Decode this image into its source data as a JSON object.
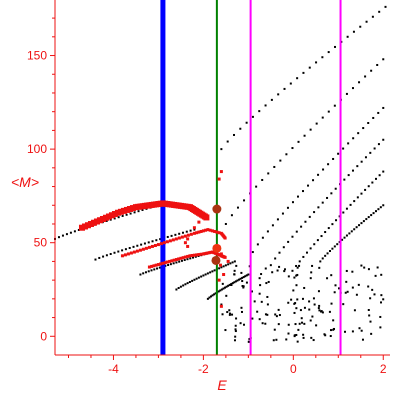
{
  "chart_data": {
    "type": "scatter",
    "xlabel": "E",
    "ylabel": "<M>",
    "xlim": [
      -5.3,
      2.15
    ],
    "ylim": [
      -10,
      177
    ],
    "x_ticks": [
      -4,
      -2,
      0,
      2
    ],
    "y_ticks": [
      0,
      50,
      100,
      150
    ],
    "grid": false,
    "axis_color": "#ee1111",
    "vertical_lines": [
      {
        "x": -2.9,
        "color": "#0000ff",
        "width": "thick"
      },
      {
        "x": -1.7,
        "color": "#008000",
        "width": "thin"
      },
      {
        "x": -0.95,
        "color": "#ff00ff",
        "width": "thin"
      },
      {
        "x": 1.05,
        "color": "#ff00ff",
        "width": "thin"
      }
    ],
    "black_branches": [
      {
        "x_start": -5.3,
        "y_start": 52,
        "x_end": -3.0,
        "y_end": 70
      },
      {
        "x_start": -4.4,
        "y_start": 41,
        "x_end": -2.2,
        "y_end": 57
      },
      {
        "x_start": -3.4,
        "y_start": 33,
        "x_end": -1.8,
        "y_end": 45
      },
      {
        "x_start": -2.6,
        "y_start": 25,
        "x_end": -1.3,
        "y_end": 40
      },
      {
        "x_start": -1.9,
        "y_start": 20,
        "x_end": -1.0,
        "y_end": 33
      },
      {
        "x_start": -1.6,
        "y_start": 100,
        "x_end": 2.05,
        "y_end": 176
      },
      {
        "x_start": -1.5,
        "y_start": 60,
        "x_end": 2.0,
        "y_end": 148
      },
      {
        "x_start": -0.9,
        "y_start": 45,
        "x_end": 2.0,
        "y_end": 122
      },
      {
        "x_start": -0.5,
        "y_start": 38,
        "x_end": 2.0,
        "y_end": 105
      },
      {
        "x_start": -0.1,
        "y_start": 32,
        "x_end": 2.0,
        "y_end": 88
      },
      {
        "x_start": 0.6,
        "y_start": 40,
        "x_end": 2.0,
        "y_end": 70
      }
    ],
    "black_cluster": {
      "x_range": [
        -1.6,
        2.1
      ],
      "y_range": [
        -3,
        38
      ],
      "count": 170
    },
    "red_branches": [
      {
        "x": [
          -4.7,
          -4.3,
          -3.9,
          -3.5,
          -3.2,
          -2.9,
          -2.6,
          -2.3,
          -2.1,
          -1.9
        ],
        "y": [
          58,
          62,
          66,
          69,
          70,
          71,
          70,
          69,
          66,
          63
        ],
        "thick": true
      },
      {
        "x": [
          -3.8,
          -3.4,
          -3.0,
          -2.6,
          -2.2,
          -1.9,
          -1.6,
          -1.5
        ],
        "y": [
          43,
          46,
          49,
          52,
          55,
          57,
          55,
          52
        ],
        "thick": false
      },
      {
        "x": [
          -3.2,
          -2.9,
          -2.6,
          -2.3,
          -2.0,
          -1.8,
          -1.6,
          -1.5
        ],
        "y": [
          37,
          39,
          41,
          43,
          44,
          45,
          43,
          42
        ],
        "thick": false
      }
    ],
    "red_extra_points": [
      {
        "x": -1.65,
        "y": 84
      },
      {
        "x": -1.6,
        "y": 88
      },
      {
        "x": -1.6,
        "y": 44
      },
      {
        "x": -1.62,
        "y": 38
      },
      {
        "x": -1.65,
        "y": 30
      },
      {
        "x": -1.6,
        "y": 16
      },
      {
        "x": -2.35,
        "y": 52
      },
      {
        "x": -2.4,
        "y": 50
      },
      {
        "x": -2.35,
        "y": 48
      },
      {
        "x": -1.55,
        "y": 33
      },
      {
        "x": -1.45,
        "y": 40
      },
      {
        "x": -2.2,
        "y": 58
      },
      {
        "x": -2.1,
        "y": 61
      }
    ],
    "large_dots": [
      {
        "x": -1.7,
        "y": 68,
        "color": "#aa3311"
      },
      {
        "x": -1.72,
        "y": 40.5,
        "color": "#aa3311"
      },
      {
        "x": -1.7,
        "y": 47,
        "color": "#ee3311"
      }
    ]
  }
}
